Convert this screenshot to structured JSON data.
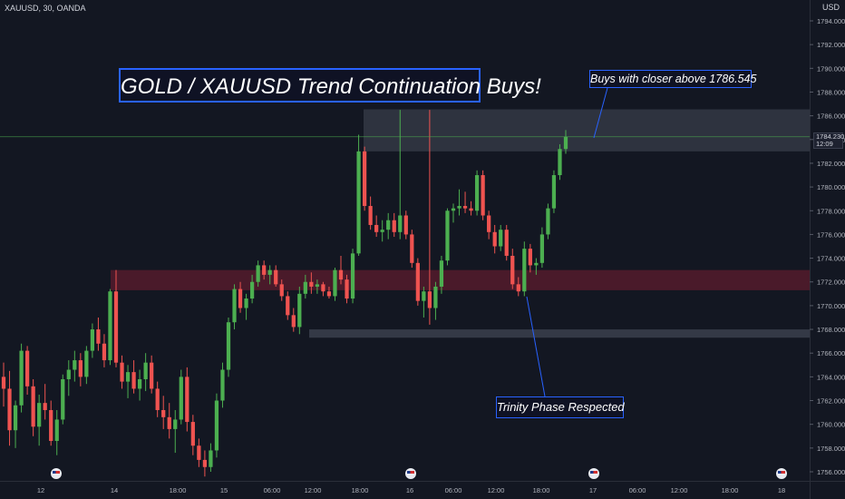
{
  "header": {
    "symbol_line": "XAUUSD, 30, OANDA",
    "currency": "USD"
  },
  "annotations": {
    "title": "GOLD / XAUUSD Trend Continuation Buys!",
    "buys_note": "Buys with closer above 1786.545",
    "trinity_note": "Trinity Phase Respected"
  },
  "price_tag": {
    "price": "1784.230",
    "countdown": "12:09"
  },
  "colors": {
    "background": "#131722",
    "bull": "#26a69a",
    "bull_bright": "#4caf50",
    "bear": "#ef5350",
    "supply_zone": "#3a3f4b",
    "demand_zone": "#5a1f2c",
    "annotation_border": "#2962ff"
  },
  "chart_data": {
    "type": "candlestick",
    "title": "GOLD / XAUUSD Trend Continuation Buys!",
    "symbol": "XAUUSD",
    "timeframe": "30",
    "exchange": "OANDA",
    "y_axis": {
      "unit": "USD",
      "range": [
        1755.0,
        1796.0
      ],
      "ticks": [
        "1756.000",
        "1758.000",
        "1760.000",
        "1762.000",
        "1764.000",
        "1766.000",
        "1768.000",
        "1770.000",
        "1772.000",
        "1774.000",
        "1776.000",
        "1778.000",
        "1780.000",
        "1782.000",
        "1784.000",
        "1786.000",
        "1788.000",
        "1790.000",
        "1792.000",
        "1794.000"
      ]
    },
    "x_axis": {
      "ticks": [
        "12",
        "14",
        "18:00",
        "15",
        "06:00",
        "12:00",
        "18:00",
        "16",
        "06:00",
        "12:00",
        "18:00",
        "17",
        "06:00",
        "12:00",
        "18:00",
        "18"
      ]
    },
    "current_price": 1784.23,
    "zones": [
      {
        "name": "supply",
        "low": 1783.0,
        "high": 1786.545
      },
      {
        "name": "demand",
        "low": 1771.3,
        "high": 1773.0
      },
      {
        "name": "support",
        "low": 1767.3,
        "high": 1768.0
      }
    ],
    "candles": [
      [
        1764.0,
        1765.2,
        1761.5,
        1763.0
      ],
      [
        1763.0,
        1764.5,
        1758.2,
        1759.5
      ],
      [
        1759.5,
        1762.0,
        1758.0,
        1761.6
      ],
      [
        1761.6,
        1766.8,
        1761.0,
        1766.2
      ],
      [
        1766.2,
        1766.6,
        1762.5,
        1763.2
      ],
      [
        1763.2,
        1763.8,
        1759.0,
        1759.8
      ],
      [
        1759.8,
        1762.5,
        1758.2,
        1761.8
      ],
      [
        1761.8,
        1763.4,
        1760.4,
        1761.2
      ],
      [
        1761.2,
        1762.0,
        1758.2,
        1758.6
      ],
      [
        1758.6,
        1761.2,
        1757.4,
        1760.4
      ],
      [
        1760.4,
        1764.2,
        1760.0,
        1763.8
      ],
      [
        1763.8,
        1765.4,
        1762.4,
        1764.6
      ],
      [
        1764.6,
        1766.2,
        1763.6,
        1765.4
      ],
      [
        1765.4,
        1766.0,
        1763.2,
        1764.0
      ],
      [
        1764.0,
        1766.6,
        1763.4,
        1766.2
      ],
      [
        1766.2,
        1768.5,
        1765.6,
        1768.0
      ],
      [
        1768.0,
        1769.0,
        1766.2,
        1766.8
      ],
      [
        1766.8,
        1767.6,
        1764.8,
        1765.4
      ],
      [
        1765.4,
        1771.4,
        1765.0,
        1771.2
      ],
      [
        1771.2,
        1773.0,
        1764.8,
        1765.2
      ],
      [
        1765.2,
        1765.8,
        1763.0,
        1763.6
      ],
      [
        1763.6,
        1765.0,
        1762.2,
        1764.4
      ],
      [
        1764.4,
        1765.4,
        1762.6,
        1763.0
      ],
      [
        1763.0,
        1764.6,
        1762.0,
        1763.8
      ],
      [
        1763.8,
        1766.0,
        1762.8,
        1765.2
      ],
      [
        1765.2,
        1765.8,
        1762.6,
        1763.0
      ],
      [
        1763.0,
        1763.6,
        1760.6,
        1761.2
      ],
      [
        1761.2,
        1762.4,
        1759.6,
        1760.6
      ],
      [
        1760.6,
        1761.8,
        1758.8,
        1759.6
      ],
      [
        1759.6,
        1761.2,
        1757.6,
        1760.4
      ],
      [
        1760.4,
        1764.6,
        1760.0,
        1764.0
      ],
      [
        1764.0,
        1764.8,
        1759.4,
        1760.2
      ],
      [
        1760.2,
        1760.8,
        1757.4,
        1758.2
      ],
      [
        1758.2,
        1758.8,
        1756.4,
        1757.0
      ],
      [
        1757.0,
        1757.8,
        1755.6,
        1756.4
      ],
      [
        1756.4,
        1758.4,
        1756.0,
        1757.8
      ],
      [
        1757.8,
        1762.6,
        1757.2,
        1762.0
      ],
      [
        1762.0,
        1765.2,
        1761.4,
        1764.6
      ],
      [
        1764.6,
        1769.0,
        1764.0,
        1768.6
      ],
      [
        1768.6,
        1771.8,
        1768.0,
        1771.4
      ],
      [
        1771.4,
        1772.0,
        1769.4,
        1769.8
      ],
      [
        1769.8,
        1771.0,
        1768.8,
        1770.6
      ],
      [
        1770.6,
        1772.6,
        1770.2,
        1772.0
      ],
      [
        1772.0,
        1773.8,
        1771.6,
        1773.4
      ],
      [
        1773.4,
        1773.8,
        1772.2,
        1772.6
      ],
      [
        1772.6,
        1773.4,
        1771.8,
        1773.0
      ],
      [
        1773.0,
        1773.4,
        1771.6,
        1771.8
      ],
      [
        1771.8,
        1772.2,
        1770.4,
        1770.8
      ],
      [
        1770.8,
        1771.2,
        1768.8,
        1769.2
      ],
      [
        1769.2,
        1769.8,
        1767.8,
        1768.2
      ],
      [
        1768.2,
        1771.6,
        1767.6,
        1771.0
      ],
      [
        1771.0,
        1772.6,
        1770.6,
        1772.0
      ],
      [
        1772.0,
        1772.8,
        1771.0,
        1771.6
      ],
      [
        1771.6,
        1772.2,
        1771.0,
        1771.8
      ],
      [
        1771.8,
        1772.0,
        1770.8,
        1771.2
      ],
      [
        1771.2,
        1771.6,
        1770.6,
        1770.8
      ],
      [
        1770.8,
        1773.2,
        1770.4,
        1773.0
      ],
      [
        1773.0,
        1774.2,
        1771.8,
        1772.2
      ],
      [
        1772.2,
        1772.6,
        1770.2,
        1770.6
      ],
      [
        1770.6,
        1774.8,
        1770.2,
        1774.4
      ],
      [
        1774.4,
        1784.4,
        1774.2,
        1783.0
      ],
      [
        1783.0,
        1783.4,
        1778.0,
        1778.4
      ],
      [
        1778.4,
        1779.2,
        1776.4,
        1776.8
      ],
      [
        1776.8,
        1777.6,
        1775.8,
        1776.2
      ],
      [
        1776.2,
        1777.2,
        1775.4,
        1776.4
      ],
      [
        1776.4,
        1777.8,
        1775.6,
        1777.2
      ],
      [
        1777.2,
        1777.8,
        1775.8,
        1776.2
      ],
      [
        1776.2,
        1786.5,
        1775.6,
        1777.6
      ],
      [
        1777.6,
        1778.0,
        1775.6,
        1776.0
      ],
      [
        1776.0,
        1776.4,
        1773.2,
        1773.6
      ],
      [
        1773.6,
        1774.0,
        1770.0,
        1770.4
      ],
      [
        1770.4,
        1771.6,
        1769.0,
        1771.2
      ],
      [
        1771.2,
        1786.5,
        1768.4,
        1769.8
      ],
      [
        1769.8,
        1772.0,
        1768.8,
        1771.6
      ],
      [
        1771.6,
        1774.2,
        1771.0,
        1773.8
      ],
      [
        1773.8,
        1778.2,
        1773.4,
        1778.0
      ],
      [
        1778.0,
        1778.6,
        1777.0,
        1778.2
      ],
      [
        1778.2,
        1779.8,
        1777.6,
        1778.4
      ],
      [
        1778.4,
        1779.6,
        1777.8,
        1778.2
      ],
      [
        1778.2,
        1778.8,
        1777.6,
        1778.0
      ],
      [
        1778.0,
        1781.4,
        1777.6,
        1781.0
      ],
      [
        1781.0,
        1781.4,
        1777.2,
        1777.6
      ],
      [
        1777.6,
        1778.0,
        1775.6,
        1776.2
      ],
      [
        1776.2,
        1776.8,
        1774.4,
        1775.0
      ],
      [
        1775.0,
        1776.8,
        1774.6,
        1776.4
      ],
      [
        1776.4,
        1776.8,
        1773.8,
        1774.2
      ],
      [
        1774.2,
        1774.8,
        1771.4,
        1771.8
      ],
      [
        1771.8,
        1772.4,
        1770.8,
        1771.2
      ],
      [
        1771.2,
        1775.4,
        1770.8,
        1774.8
      ],
      [
        1774.8,
        1775.2,
        1772.8,
        1773.4
      ],
      [
        1773.4,
        1774.0,
        1772.6,
        1773.6
      ],
      [
        1773.6,
        1776.6,
        1773.2,
        1776.0
      ],
      [
        1776.0,
        1778.6,
        1775.6,
        1778.2
      ],
      [
        1778.2,
        1781.4,
        1777.8,
        1781.0
      ],
      [
        1781.0,
        1783.6,
        1780.6,
        1783.2
      ],
      [
        1783.2,
        1784.8,
        1782.8,
        1784.23
      ]
    ]
  }
}
